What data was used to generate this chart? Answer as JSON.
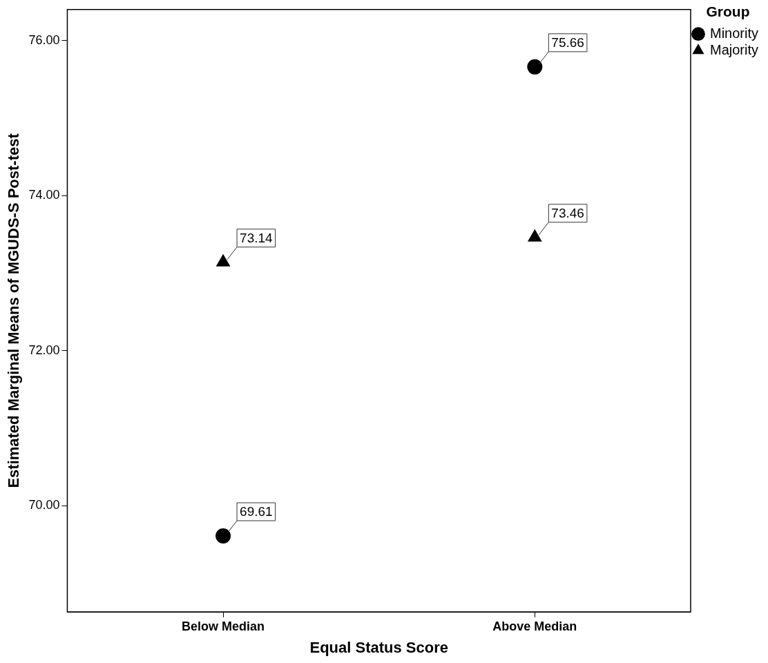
{
  "chart_data": {
    "type": "scatter",
    "xlabel": "Equal Status Score",
    "ylabel": "Estimated Marginal Means of MGUDS-S Post-test",
    "legend_title": "Group",
    "legend": "top right",
    "categories": [
      "Below Median",
      "Above Median"
    ],
    "series": [
      {
        "name": "Minority",
        "color": "#000000",
        "marker": "circle",
        "values": [
          69.61,
          75.66
        ]
      },
      {
        "name": "Majority",
        "color": "#000000",
        "marker": "triangle",
        "values": [
          73.14,
          73.46
        ]
      }
    ],
    "ylim": [
      68.63,
      76.4
    ],
    "yticks": [
      {
        "value": 70,
        "label": "70.00"
      },
      {
        "value": 72,
        "label": "72.00"
      },
      {
        "value": 74,
        "label": "74.00"
      },
      {
        "value": 76,
        "label": "76.00"
      }
    ],
    "data_labels": true,
    "grid": false
  }
}
